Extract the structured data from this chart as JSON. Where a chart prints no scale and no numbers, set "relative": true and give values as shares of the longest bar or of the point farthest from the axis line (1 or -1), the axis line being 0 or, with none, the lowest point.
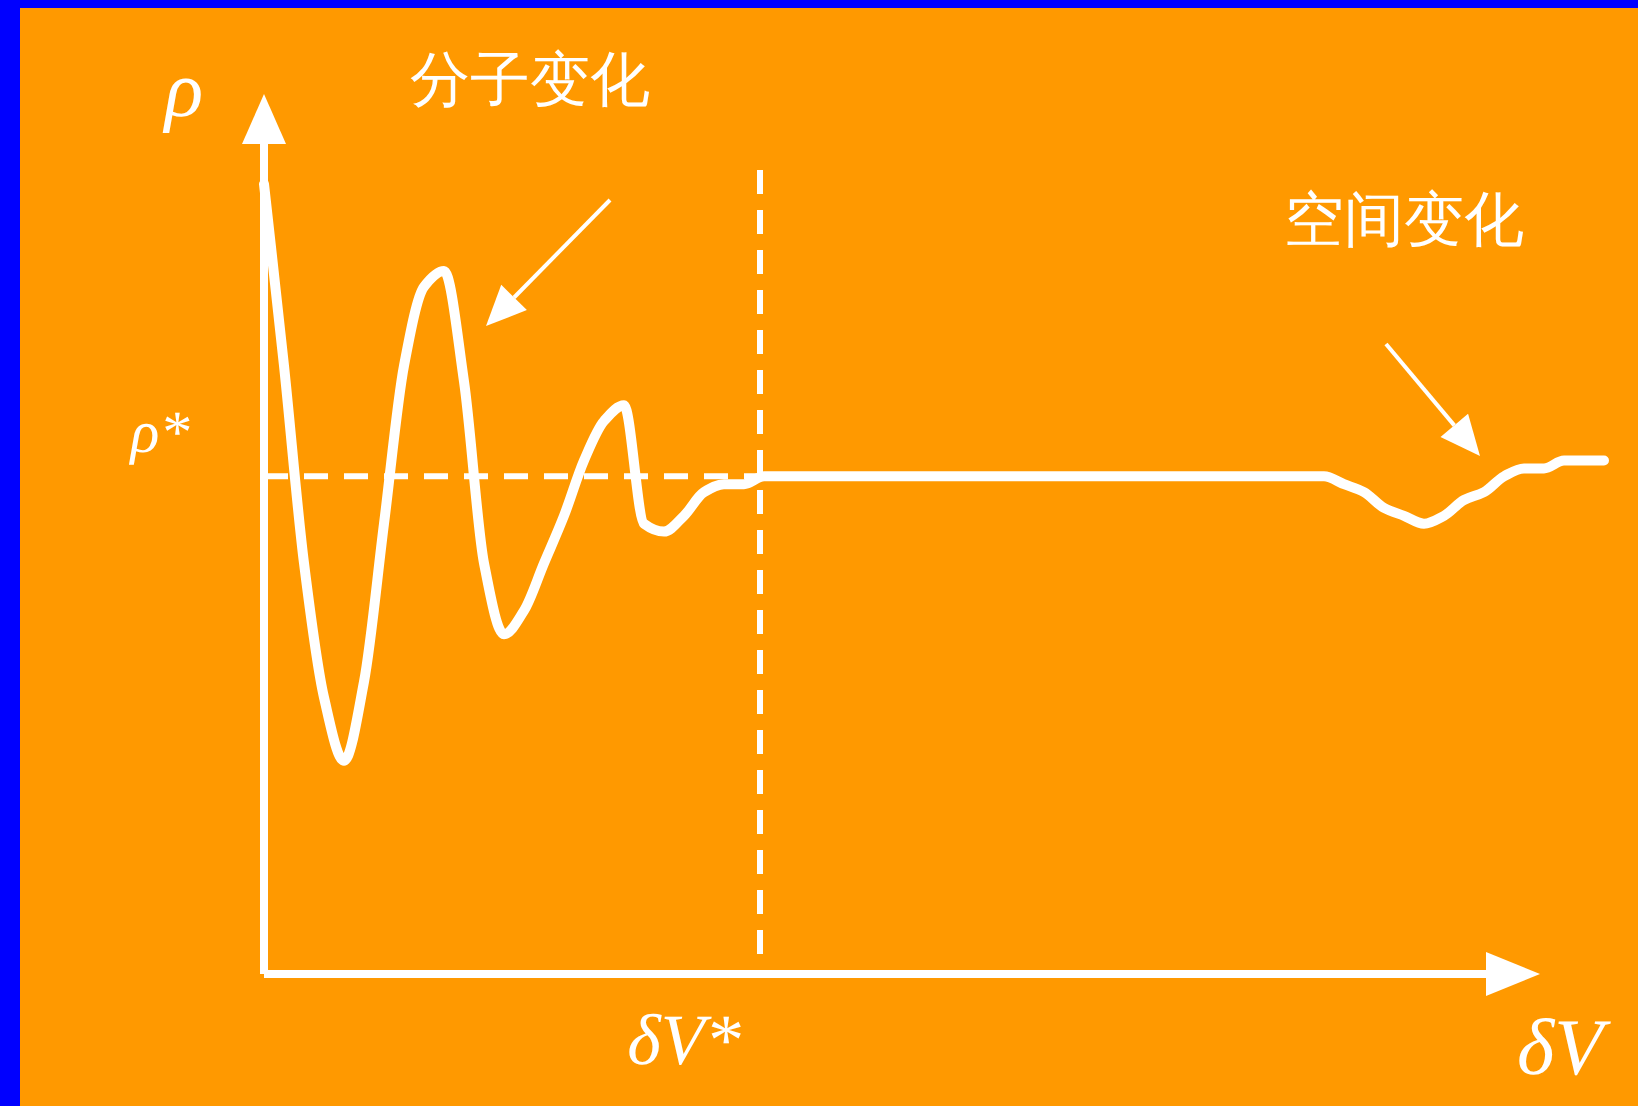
{
  "chart_data": {
    "type": "line",
    "relative": true,
    "categories": [
      null,
      null,
      null,
      null,
      null,
      null,
      null,
      null,
      null,
      null,
      null,
      null,
      null,
      null,
      null,
      null,
      null,
      null,
      null,
      null,
      null,
      null,
      null,
      null,
      null,
      null,
      null,
      null,
      null,
      null,
      null,
      null,
      null,
      null,
      null,
      null,
      null,
      null,
      null,
      null,
      null,
      null,
      null,
      null,
      null,
      null,
      null,
      null,
      null,
      null,
      null,
      null,
      null,
      null,
      null,
      null,
      null,
      null,
      null,
      null,
      null,
      null,
      null,
      null,
      null,
      null,
      null,
      null
    ],
    "series": [
      {
        "color": "#ffffff",
        "values": [
          1.0,
          0.77,
          0.52,
          0.35,
          0.27,
          0.37,
          0.57,
          0.77,
          0.87,
          0.89,
          0.75,
          0.52,
          0.43,
          0.46,
          0.52,
          0.58,
          0.65,
          0.7,
          0.72,
          0.57,
          0.56,
          0.58,
          0.61,
          0.62,
          0.62,
          0.63,
          0.63,
          0.63,
          0.63,
          0.63,
          0.63,
          0.63,
          0.63,
          0.63,
          0.63,
          0.63,
          0.63,
          0.63,
          0.63,
          0.63,
          0.63,
          0.63,
          0.63,
          0.63,
          0.63,
          0.63,
          0.63,
          0.63,
          0.63,
          0.63,
          0.63,
          0.63,
          0.63,
          0.63,
          0.62,
          0.61,
          0.59,
          0.58,
          0.57,
          0.58,
          0.6,
          0.61,
          0.63,
          0.64,
          0.64,
          0.65,
          0.65,
          0.65
        ]
      }
    ],
    "xlabel": "δV",
    "ylabel": "ρ",
    "line_style": "solid",
    "ref_lines": [
      {
        "axis": "y",
        "value": 0.63,
        "label": "ρ*",
        "line_style": "dashed",
        "color": "#ffffff"
      }
    ],
    "annotations": [
      "分子变化",
      "空间变化",
      "δV*"
    ]
  }
}
